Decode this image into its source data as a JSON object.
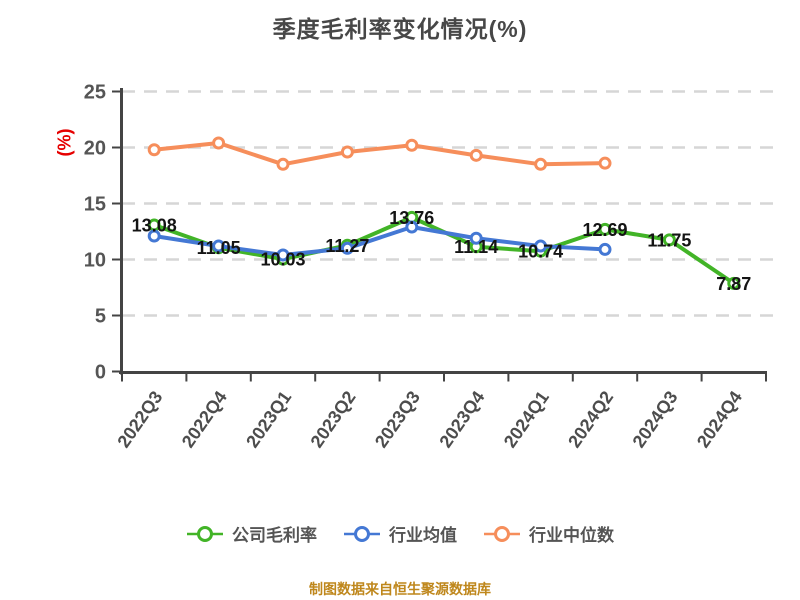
{
  "title": "季度毛利率变化情况(%)",
  "y_axis_label": "(%)",
  "footer": "制图数据来自恒生聚源数据库",
  "colors": {
    "company": "#42b427",
    "industry_avg": "#4478d4",
    "industry_median": "#f68e5b",
    "title_text": "#474747",
    "axis_text": "#555555",
    "x_axis_text": "#4d4d4d",
    "axis_line": "#444444",
    "grid_line": "#d6d6d6",
    "data_label": "#141414",
    "y_unit_label": "#e60000",
    "footer_text": "#bf871c",
    "marker_fill": "#ffffff"
  },
  "chart_data": {
    "type": "line",
    "categories": [
      "2022Q3",
      "2022Q4",
      "2023Q1",
      "2023Q2",
      "2023Q3",
      "2023Q4",
      "2024Q1",
      "2024Q2",
      "2024Q3",
      "2024Q4"
    ],
    "series": [
      {
        "name": "公司毛利率",
        "color_key": "company",
        "values": [
          13.08,
          11.05,
          10.03,
          11.27,
          13.76,
          11.14,
          10.74,
          12.69,
          11.75,
          7.87
        ],
        "show_labels": true
      },
      {
        "name": "行业均值",
        "color_key": "industry_avg",
        "values": [
          12.1,
          11.2,
          10.4,
          11.0,
          12.9,
          11.9,
          11.2,
          10.9
        ],
        "show_labels": false
      },
      {
        "name": "行业中位数",
        "color_key": "industry_median",
        "values": [
          19.8,
          20.4,
          18.5,
          19.6,
          20.2,
          19.3,
          18.5,
          18.6
        ],
        "show_labels": false
      }
    ],
    "ylim": [
      0,
      25
    ],
    "yticks": [
      0,
      5,
      10,
      15,
      20,
      25
    ],
    "grid": "horizontal-dashed",
    "legend_position": "bottom",
    "x_label_rotation_deg": -55
  }
}
